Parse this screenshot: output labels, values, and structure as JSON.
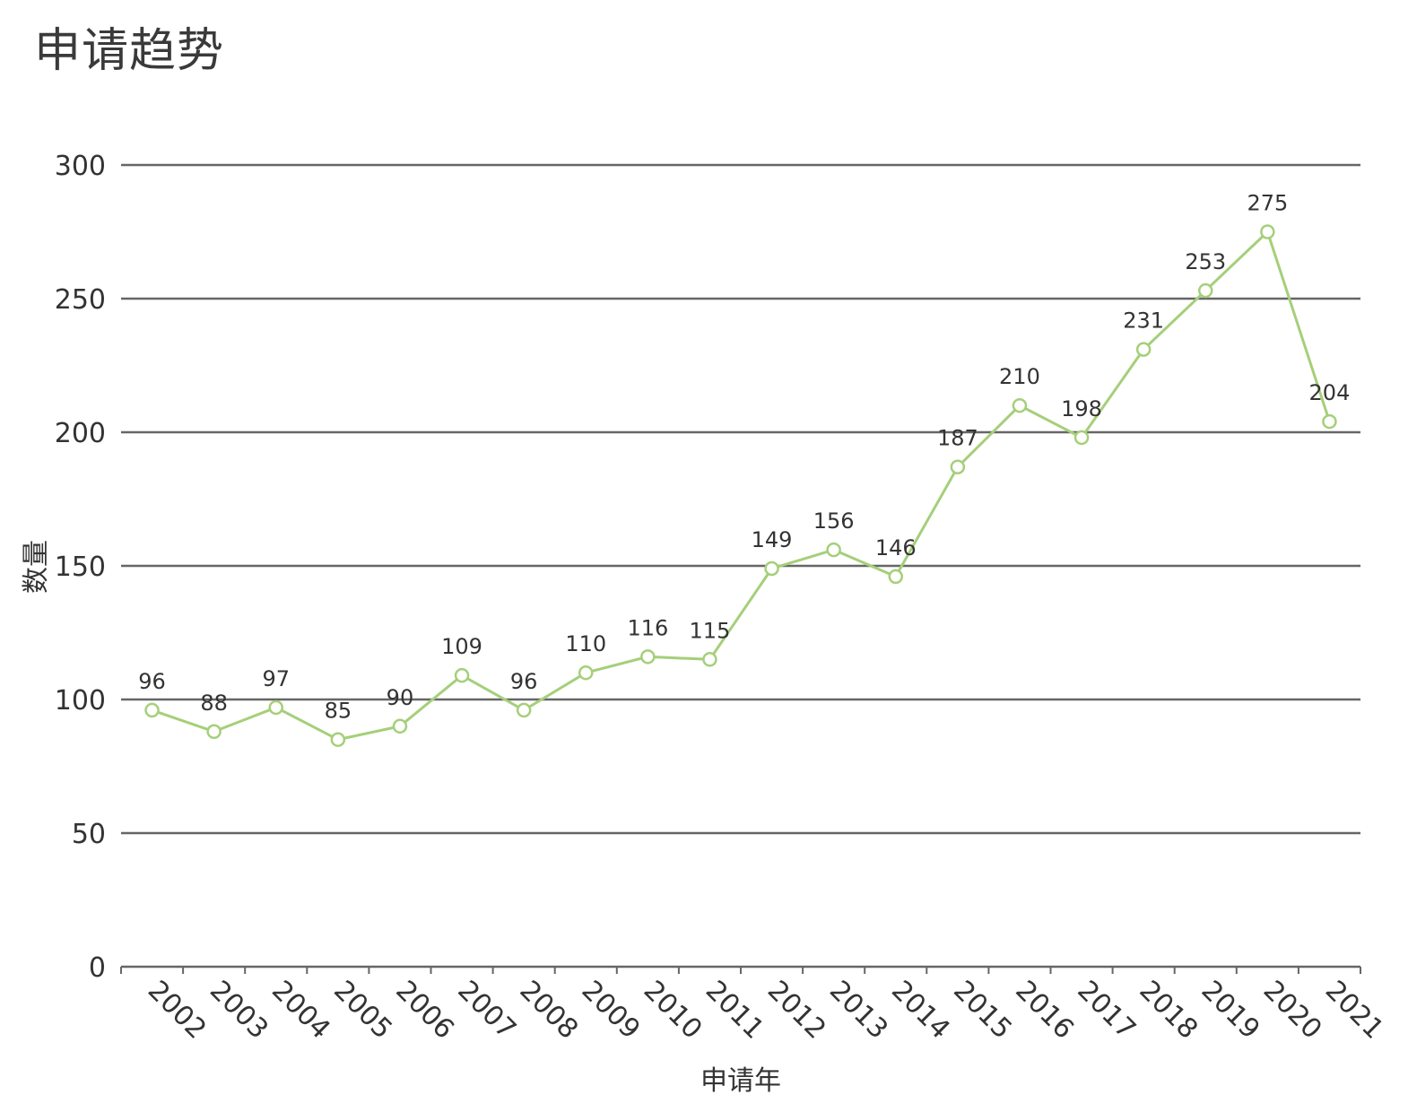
{
  "chart_data": {
    "type": "line",
    "title": "申请趋势",
    "xlabel": "申请年",
    "ylabel": "数量",
    "categories": [
      "2002",
      "2003",
      "2004",
      "2005",
      "2006",
      "2007",
      "2008",
      "2009",
      "2010",
      "2011",
      "2012",
      "2013",
      "2014",
      "2015",
      "2016",
      "2017",
      "2018",
      "2019",
      "2020",
      "2021"
    ],
    "series": [
      {
        "values": [
          96,
          88,
          97,
          85,
          90,
          109,
          96,
          110,
          116,
          115,
          149,
          156,
          146,
          187,
          210,
          198,
          231,
          253,
          275,
          204
        ]
      }
    ],
    "ylim": [
      0,
      300
    ],
    "yticks": [
      0,
      50,
      100,
      150,
      200,
      250,
      300
    ],
    "grid": true,
    "data_labels": true,
    "line_color": "#a5cf7a",
    "grid_color": "#666666"
  }
}
